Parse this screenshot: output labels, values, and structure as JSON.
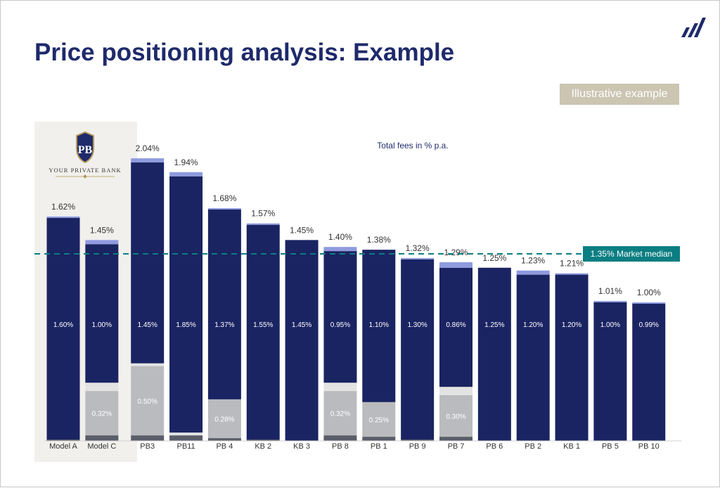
{
  "slide": {
    "title": "Price positioning analysis: Example",
    "badge": "Illustrative example",
    "logo_icon": "bar-stripes-logo-icon",
    "bank_logo": {
      "monogram": "PB",
      "name": "YOUR PRIVATE BANK",
      "icon": "shield-crest-icon"
    }
  },
  "colors": {
    "title": "#1f2a6b",
    "navy": "#1a2462",
    "light_blue": "#8f9bde",
    "grey": "#babbbe",
    "light_grey": "#e3e3e3",
    "dark_grey": "#5a5e6a",
    "teal": "#0b7e82",
    "badge": "#cbc5b2",
    "panel": "#f1f0ec"
  },
  "chart_data": {
    "type": "bar",
    "stacked": true,
    "subtitle": "Total fees in % p.a.",
    "ylim": [
      0,
      2.1
    ],
    "grid": false,
    "categories": [
      "Model A",
      "Model C",
      "PB3",
      "PB11",
      "PB 4",
      "KB 2",
      "KB 3",
      "PB 8",
      "PB 1",
      "PB 9",
      "PB 7",
      "PB 6",
      "PB 2",
      "KB 1",
      "PB 5",
      "PB 10"
    ],
    "highlighted_categories": [
      "Model A",
      "Model C"
    ],
    "totals": [
      1.62,
      1.45,
      2.04,
      1.94,
      1.68,
      1.57,
      1.45,
      1.4,
      1.38,
      1.32,
      1.29,
      1.25,
      1.23,
      1.21,
      1.01,
      1.0
    ],
    "total_labels": [
      "1.62%",
      "1.45%",
      "2.04%",
      "1.94%",
      "1.68%",
      "1.57%",
      "1.45%",
      "1.40%",
      "1.38%",
      "1.32%",
      "1.29%",
      "1.25%",
      "1.23%",
      "1.21%",
      "1.01%",
      "1.00%"
    ],
    "main_labels": [
      "1.60%",
      "1.00%",
      "1.45%",
      "1.85%",
      "1.37%",
      "1.55%",
      "1.45%",
      "0.95%",
      "1.10%",
      "1.30%",
      "0.86%",
      "1.25%",
      "1.20%",
      "1.20%",
      "1.00%",
      "0.99%"
    ],
    "series": [
      {
        "color_key": "dark_grey",
        "values": [
          0.01,
          0.04,
          0.04,
          0.04,
          0.02,
          0.01,
          0,
          0.04,
          0.03,
          0.01,
          0.03,
          0,
          0,
          0,
          0,
          0
        ]
      },
      {
        "color_key": "grey",
        "values": [
          0,
          0.32,
          0.5,
          0,
          0.28,
          0,
          0,
          0.32,
          0.25,
          0,
          0.3,
          0,
          0,
          0,
          0,
          0
        ],
        "labels": [
          "",
          "0.32%",
          "0.50%",
          "",
          "0.28%",
          "",
          "",
          "0.32%",
          "0.25%",
          "",
          "0.30%",
          "",
          "",
          "",
          "",
          ""
        ]
      },
      {
        "color_key": "light_grey",
        "values": [
          0,
          0.06,
          0.02,
          0.02,
          0,
          0,
          0,
          0.06,
          0,
          0,
          0.06,
          0,
          0,
          0,
          0,
          0
        ]
      },
      {
        "color_key": "navy",
        "values": [
          1.6,
          1.0,
          1.45,
          1.85,
          1.37,
          1.55,
          1.45,
          0.95,
          1.1,
          1.3,
          0.86,
          1.25,
          1.2,
          1.2,
          1.0,
          0.99
        ]
      },
      {
        "color_key": "light_blue",
        "values": [
          0.01,
          0.03,
          0.03,
          0.03,
          0.01,
          0.01,
          0,
          0.03,
          0,
          0.01,
          0.04,
          0,
          0.03,
          0.01,
          0.01,
          0.01
        ]
      }
    ],
    "reference_line": {
      "value": 1.35,
      "label": "1.35% Market median"
    }
  }
}
